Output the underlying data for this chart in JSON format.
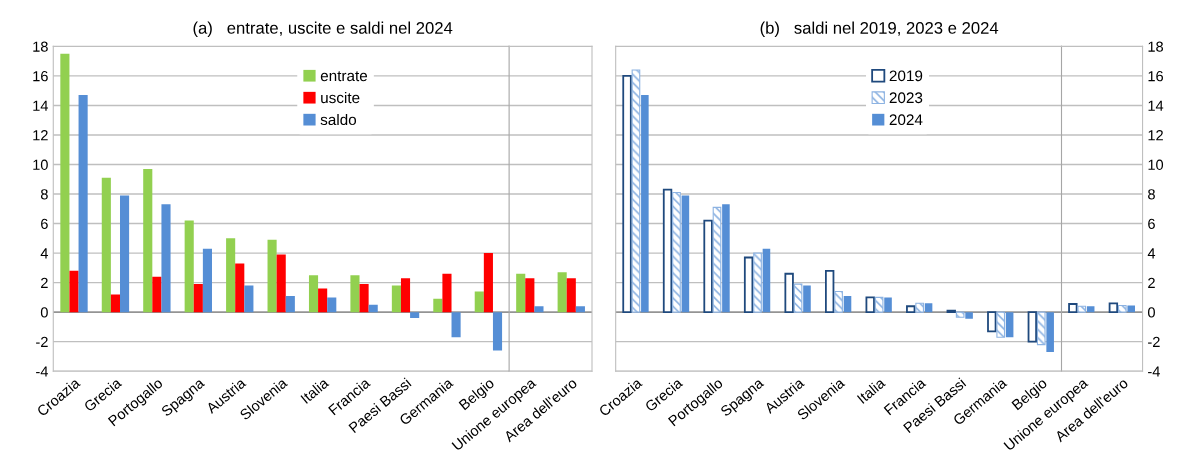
{
  "chart_data": [
    {
      "type": "bar",
      "title": "(a)   entrate, uscite e saldi nel 2024",
      "categories": [
        "Croazia",
        "Grecia",
        "Portogallo",
        "Spagna",
        "Austria",
        "Slovenia",
        "Italia",
        "Francia",
        "Paesi Bassi",
        "Germania",
        "Belgio"
      ],
      "series": [
        {
          "name": "entrate",
          "color": "#92d050",
          "values": [
            17.5,
            9.1,
            9.7,
            6.2,
            5.0,
            4.9,
            2.5,
            2.5,
            1.8,
            0.9,
            1.4
          ]
        },
        {
          "name": "uscite",
          "color": "#ff0000",
          "values": [
            2.8,
            1.2,
            2.4,
            1.9,
            3.3,
            3.9,
            1.6,
            1.9,
            2.3,
            2.6,
            4.0
          ]
        },
        {
          "name": "saldo",
          "color": "#558ed5",
          "values": [
            14.7,
            7.9,
            7.3,
            4.3,
            1.8,
            1.1,
            1.0,
            0.5,
            -0.4,
            -1.7,
            -2.6
          ]
        }
      ],
      "ylim": [
        -4,
        18
      ],
      "yticks": [
        -4,
        -2,
        0,
        2,
        4,
        6,
        8,
        10,
        12,
        14,
        16,
        18
      ],
      "grid": "y",
      "legend": "top right"
    },
    {
      "type": "bar",
      "categories": [
        "Unione europea",
        "Area dell'euro"
      ],
      "series": [
        {
          "color": "#92d050",
          "values": [
            2.6,
            2.7
          ]
        },
        {
          "color": "#ff0000",
          "values": [
            2.3,
            2.3
          ]
        },
        {
          "color": "#558ed5",
          "values": [
            0.4,
            0.4
          ]
        }
      ],
      "ylim": [
        -4,
        18
      ],
      "yticks": [
        -4,
        -2,
        0,
        2,
        4,
        6,
        8,
        10,
        12,
        14,
        16,
        18
      ],
      "grid": "y",
      "tick_labels": "x"
    },
    {
      "type": "bar",
      "title": "(b)   saldi nel 2019, 2023 e 2024",
      "categories": [
        "Croazia",
        "Grecia",
        "Portogallo",
        "Spagna",
        "Austria",
        "Slovenia",
        "Italia",
        "Francia",
        "Paesi Bassi",
        "Germania",
        "Belgio"
      ],
      "series": [
        {
          "name": "2019",
          "color": "#1f497d",
          "values": [
            16.0,
            8.3,
            6.2,
            3.7,
            2.6,
            2.8,
            1.0,
            0.4,
            0.1,
            -1.3,
            -2.0
          ]
        },
        {
          "name": "2023",
          "color": "#8db3e2",
          "values": [
            16.4,
            8.1,
            7.1,
            4.0,
            1.9,
            1.4,
            1.0,
            0.6,
            -0.35,
            -1.7,
            -2.2
          ]
        },
        {
          "name": "2024",
          "color": "#558ed5",
          "values": [
            14.7,
            7.9,
            7.3,
            4.3,
            1.8,
            1.1,
            1.0,
            0.6,
            -0.45,
            -1.7,
            -2.7
          ]
        }
      ],
      "ylim": [
        -4,
        18
      ],
      "yticks": [
        -4,
        -2,
        0,
        2,
        4,
        6,
        8,
        10,
        12,
        14,
        16,
        18
      ],
      "grid": "y",
      "legend": "top right",
      "tick_labels": "x"
    },
    {
      "type": "bar",
      "categories": [
        "Unione europea",
        "Area dell'euro"
      ],
      "series": [
        {
          "color": "#1f497d",
          "values": [
            0.55,
            0.6
          ]
        },
        {
          "color": "#8db3e2",
          "values": [
            0.4,
            0.45
          ]
        },
        {
          "color": "#558ed5",
          "values": [
            0.4,
            0.45
          ]
        }
      ],
      "ylim": [
        -4,
        18
      ],
      "yticks": [
        -4,
        -2,
        0,
        2,
        4,
        6,
        8,
        10,
        12,
        14,
        16,
        18
      ],
      "grid": "y"
    }
  ]
}
